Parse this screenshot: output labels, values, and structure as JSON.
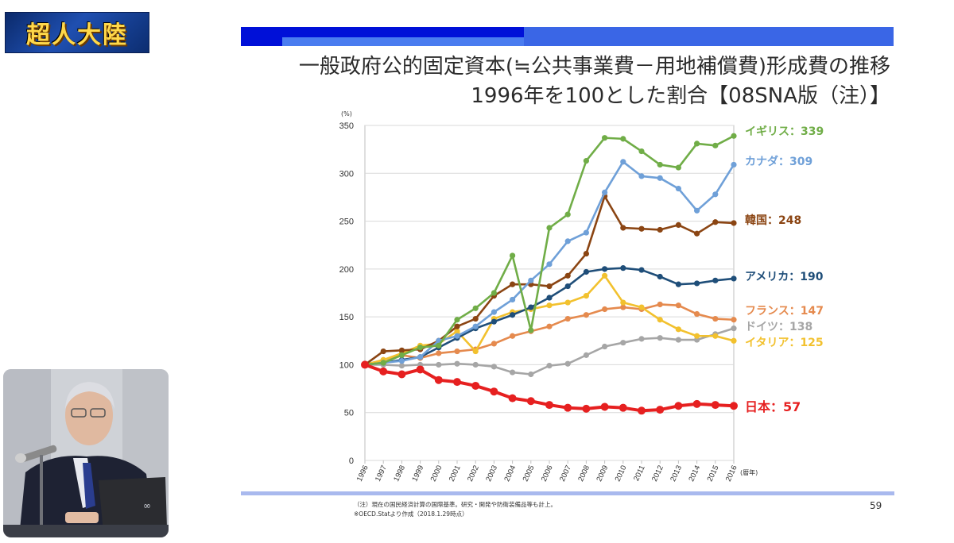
{
  "logo": {
    "text": "超人大陸",
    "colors": {
      "bg": "#1f4fb0",
      "text": "#ffd84a"
    }
  },
  "slide": {
    "title_line1": "一般政府公的固定資本(≒公共事業費－用地補償費)形成費の推移",
    "title_line2": "1996年を100とした割合【08SNA版（注）】",
    "note1": "（注）現在の国民経済計算の国際基準。研究・開発や防衛装備品等も計上。",
    "note2": "※OECD.Statより作成（2018.1.29時点）",
    "page_number": "59"
  },
  "chart_data": {
    "type": "line",
    "ylabel": "(%)",
    "xlabel": "(暦年)",
    "ylim": [
      0,
      350
    ],
    "yticks": [
      0,
      50,
      100,
      150,
      200,
      250,
      300,
      350
    ],
    "grid": true,
    "legend": "right-side end labels",
    "x": [
      "1996",
      "1997",
      "1998",
      "1999",
      "2000",
      "2001",
      "2002",
      "2003",
      "2004",
      "2005",
      "2006",
      "2007",
      "2008",
      "2009",
      "2010",
      "2011",
      "2012",
      "2013",
      "2014",
      "2015",
      "2016"
    ],
    "series": [
      {
        "name": "ドイツ",
        "end_label": "ドイツ：138",
        "color": "#a6a6a6",
        "values": [
          100,
          100,
          99,
          100,
          100,
          101,
          100,
          98,
          92,
          90,
          99,
          101,
          110,
          119,
          123,
          127,
          128,
          126,
          126,
          132,
          138
        ]
      },
      {
        "name": "フランス",
        "end_label": "フランス：147",
        "color": "#e58a4e",
        "values": [
          100,
          105,
          110,
          107,
          112,
          114,
          116,
          122,
          130,
          135,
          140,
          148,
          152,
          158,
          160,
          158,
          163,
          162,
          153,
          148,
          147
        ]
      },
      {
        "name": "イタリア",
        "end_label": "イタリア：125",
        "color": "#f2c12e",
        "values": [
          100,
          105,
          112,
          120,
          122,
          135,
          114,
          148,
          155,
          158,
          162,
          165,
          172,
          193,
          165,
          160,
          147,
          137,
          130,
          130,
          125
        ]
      },
      {
        "name": "アメリカ",
        "end_label": "アメリカ：190",
        "color": "#1f4e79",
        "values": [
          100,
          102,
          105,
          108,
          118,
          128,
          138,
          145,
          152,
          160,
          170,
          182,
          197,
          200,
          201,
          199,
          192,
          184,
          185,
          188,
          190
        ]
      },
      {
        "name": "韓国",
        "end_label": "韓国：248",
        "color": "#8b4513",
        "values": [
          100,
          114,
          115,
          116,
          125,
          140,
          148,
          172,
          184,
          184,
          182,
          193,
          216,
          276,
          243,
          242,
          241,
          246,
          237,
          249,
          248
        ]
      },
      {
        "name": "カナダ",
        "end_label": "カナダ：309",
        "color": "#6fa0d8",
        "values": [
          100,
          102,
          104,
          108,
          125,
          130,
          140,
          155,
          168,
          188,
          205,
          229,
          238,
          280,
          312,
          297,
          295,
          284,
          261,
          278,
          309
        ]
      },
      {
        "name": "イギリス",
        "end_label": "イギリス：339",
        "color": "#70ad47",
        "values": [
          100,
          102,
          110,
          118,
          120,
          147,
          159,
          175,
          214,
          136,
          243,
          257,
          313,
          337,
          336,
          323,
          309,
          306,
          331,
          329,
          339
        ]
      },
      {
        "name": "日本",
        "end_label": "日本：57",
        "color": "#e62020",
        "values": [
          100,
          93,
          90,
          95,
          84,
          82,
          78,
          72,
          65,
          62,
          58,
          55,
          54,
          56,
          55,
          52,
          53,
          57,
          59,
          58,
          57
        ]
      }
    ]
  }
}
